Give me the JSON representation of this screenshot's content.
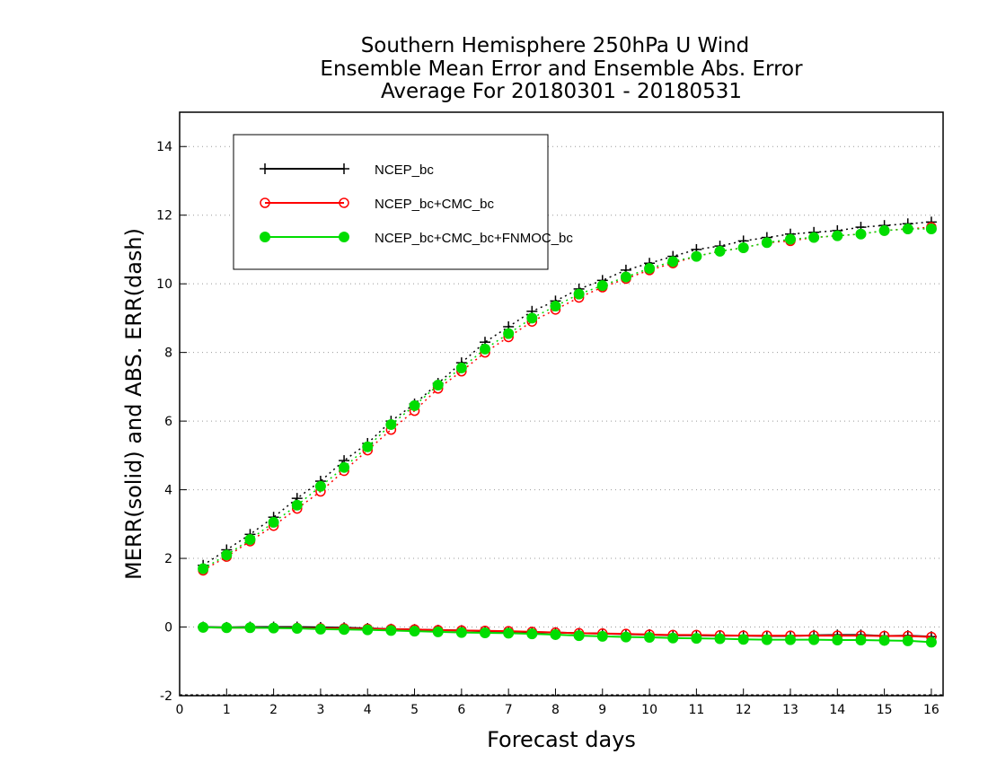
{
  "chart_data": {
    "type": "line",
    "title_lines": [
      "Southern Hemisphere 250hPa U Wind",
      "Ensemble Mean Error and Ensemble Abs. Error",
      "Average For 20180301 - 20180531"
    ],
    "xlabel": "Forecast days",
    "ylabel": "MERR(solid) and ABS. ERR(dash)",
    "xlim": [
      0,
      16.25
    ],
    "ylim": [
      -2,
      15
    ],
    "xticks": [
      "0",
      "1",
      "2",
      "3",
      "4",
      "5",
      "6",
      "7",
      "8",
      "9",
      "10",
      "11",
      "12",
      "13",
      "14",
      "15",
      "16"
    ],
    "yticks": [
      "-2",
      "0",
      "2",
      "4",
      "6",
      "8",
      "10",
      "12",
      "14"
    ],
    "grid": "dotted horizontal",
    "legend_position": "top-left",
    "x": [
      0.5,
      1,
      1.5,
      2,
      2.5,
      3,
      3.5,
      4,
      4.5,
      5,
      5.5,
      6,
      6.5,
      7,
      7.5,
      8,
      8.5,
      9,
      9.5,
      10,
      10.5,
      11,
      11.5,
      12,
      12.5,
      13,
      13.5,
      14,
      14.5,
      15,
      15.5,
      16
    ],
    "series": [
      {
        "name": "NCEP_bc",
        "color": "#000000",
        "marker": "plus",
        "merr": [
          0.0,
          -0.01,
          0.0,
          0.0,
          0.0,
          -0.01,
          -0.02,
          -0.04,
          -0.06,
          -0.07,
          -0.09,
          -0.1,
          -0.12,
          -0.13,
          -0.15,
          -0.16,
          -0.18,
          -0.19,
          -0.21,
          -0.22,
          -0.24,
          -0.24,
          -0.25,
          -0.25,
          -0.26,
          -0.26,
          -0.24,
          -0.23,
          -0.23,
          -0.26,
          -0.25,
          -0.28
        ],
        "abs_err": [
          1.8,
          2.25,
          2.7,
          3.2,
          3.75,
          4.25,
          4.85,
          5.35,
          6.0,
          6.5,
          7.1,
          7.7,
          8.3,
          8.75,
          9.2,
          9.5,
          9.85,
          10.1,
          10.4,
          10.6,
          10.8,
          11.0,
          11.1,
          11.25,
          11.35,
          11.45,
          11.5,
          11.55,
          11.65,
          11.7,
          11.75,
          11.8
        ]
      },
      {
        "name": "NCEP_bc+CMC_bc",
        "color": "#ff0000",
        "marker": "open-circle",
        "merr": [
          -0.01,
          -0.02,
          -0.02,
          -0.03,
          -0.03,
          -0.04,
          -0.04,
          -0.05,
          -0.06,
          -0.07,
          -0.09,
          -0.1,
          -0.11,
          -0.12,
          -0.14,
          -0.16,
          -0.18,
          -0.19,
          -0.2,
          -0.22,
          -0.23,
          -0.23,
          -0.24,
          -0.25,
          -0.25,
          -0.25,
          -0.25,
          -0.25,
          -0.25,
          -0.26,
          -0.26,
          -0.29
        ],
        "abs_err": [
          1.65,
          2.05,
          2.5,
          2.95,
          3.45,
          3.95,
          4.55,
          5.15,
          5.75,
          6.3,
          6.95,
          7.45,
          8.0,
          8.45,
          8.9,
          9.25,
          9.6,
          9.9,
          10.15,
          10.4,
          10.6,
          10.8,
          10.95,
          11.05,
          11.2,
          11.25,
          11.35,
          11.4,
          11.45,
          11.55,
          11.6,
          11.65
        ]
      },
      {
        "name": "NCEP_bc+CMC_bc+FNMOC_bc",
        "color": "#00dd00",
        "marker": "filled-circle",
        "merr": [
          -0.01,
          -0.02,
          -0.02,
          -0.03,
          -0.04,
          -0.06,
          -0.07,
          -0.08,
          -0.1,
          -0.12,
          -0.14,
          -0.16,
          -0.17,
          -0.18,
          -0.2,
          -0.22,
          -0.25,
          -0.27,
          -0.29,
          -0.3,
          -0.32,
          -0.33,
          -0.34,
          -0.36,
          -0.37,
          -0.37,
          -0.37,
          -0.38,
          -0.38,
          -0.39,
          -0.4,
          -0.44
        ],
        "abs_err": [
          1.7,
          2.1,
          2.55,
          3.05,
          3.55,
          4.1,
          4.65,
          5.25,
          5.9,
          6.45,
          7.05,
          7.55,
          8.1,
          8.55,
          9.0,
          9.35,
          9.7,
          9.95,
          10.2,
          10.45,
          10.65,
          10.8,
          10.95,
          11.05,
          11.2,
          11.3,
          11.35,
          11.4,
          11.45,
          11.55,
          11.6,
          11.6
        ]
      }
    ]
  }
}
